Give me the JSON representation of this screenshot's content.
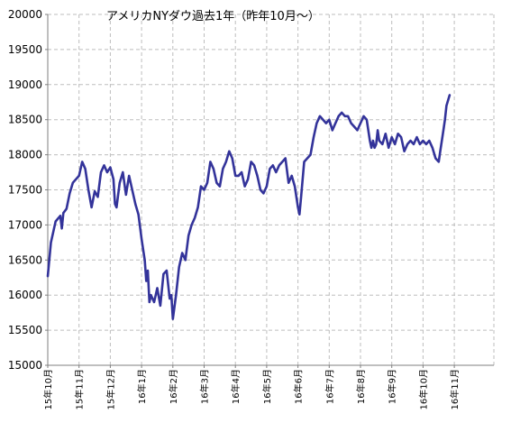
{
  "chart_data": {
    "type": "line",
    "title": "アメリカNYダウ過去1年（昨年10月～）",
    "xlabel": "",
    "ylabel": "",
    "ylim": [
      15000,
      20000
    ],
    "yticks": [
      15000,
      15500,
      16000,
      16500,
      17000,
      17500,
      18000,
      18500,
      19000,
      19500,
      20000
    ],
    "xticks": [
      "15年10月",
      "15年11月",
      "15年12月",
      "16年1月",
      "16年2月",
      "16年3月",
      "16年4月",
      "16年5月",
      "16年6月",
      "16年7月",
      "16年8月",
      "16年9月",
      "16年10月",
      "16年11月"
    ],
    "grid": true,
    "legend": "none",
    "line_color": "#33339a",
    "series": [
      {
        "values": [
          [
            0,
            16270
          ],
          [
            0.1,
            16750
          ],
          [
            0.25,
            17050
          ],
          [
            0.4,
            17130
          ],
          [
            0.45,
            16950
          ],
          [
            0.5,
            17170
          ],
          [
            0.6,
            17230
          ],
          [
            0.7,
            17450
          ],
          [
            0.8,
            17600
          ],
          [
            0.9,
            17650
          ],
          [
            1.0,
            17700
          ],
          [
            1.1,
            17900
          ],
          [
            1.2,
            17800
          ],
          [
            1.3,
            17500
          ],
          [
            1.4,
            17250
          ],
          [
            1.5,
            17480
          ],
          [
            1.6,
            17400
          ],
          [
            1.7,
            17750
          ],
          [
            1.8,
            17850
          ],
          [
            1.9,
            17750
          ],
          [
            2.0,
            17820
          ],
          [
            2.1,
            17650
          ],
          [
            2.15,
            17300
          ],
          [
            2.2,
            17250
          ],
          [
            2.3,
            17600
          ],
          [
            2.4,
            17750
          ],
          [
            2.5,
            17430
          ],
          [
            2.6,
            17700
          ],
          [
            2.7,
            17500
          ],
          [
            2.8,
            17300
          ],
          [
            2.9,
            17150
          ],
          [
            3.0,
            16800
          ],
          [
            3.1,
            16500
          ],
          [
            3.15,
            16200
          ],
          [
            3.2,
            16350
          ],
          [
            3.25,
            15900
          ],
          [
            3.3,
            16000
          ],
          [
            3.4,
            15900
          ],
          [
            3.5,
            16100
          ],
          [
            3.6,
            15850
          ],
          [
            3.7,
            16300
          ],
          [
            3.8,
            16350
          ],
          [
            3.9,
            15950
          ],
          [
            3.95,
            16000
          ],
          [
            4.0,
            15660
          ],
          [
            4.1,
            16000
          ],
          [
            4.2,
            16400
          ],
          [
            4.3,
            16600
          ],
          [
            4.4,
            16500
          ],
          [
            4.5,
            16850
          ],
          [
            4.6,
            17000
          ],
          [
            4.7,
            17100
          ],
          [
            4.8,
            17250
          ],
          [
            4.9,
            17550
          ],
          [
            5.0,
            17500
          ],
          [
            5.1,
            17600
          ],
          [
            5.2,
            17900
          ],
          [
            5.3,
            17800
          ],
          [
            5.4,
            17600
          ],
          [
            5.5,
            17550
          ],
          [
            5.6,
            17800
          ],
          [
            5.7,
            17900
          ],
          [
            5.8,
            18050
          ],
          [
            5.9,
            17950
          ],
          [
            6.0,
            17700
          ],
          [
            6.1,
            17700
          ],
          [
            6.2,
            17750
          ],
          [
            6.3,
            17550
          ],
          [
            6.4,
            17650
          ],
          [
            6.5,
            17900
          ],
          [
            6.6,
            17850
          ],
          [
            6.7,
            17700
          ],
          [
            6.8,
            17500
          ],
          [
            6.9,
            17450
          ],
          [
            7.0,
            17550
          ],
          [
            7.1,
            17800
          ],
          [
            7.2,
            17850
          ],
          [
            7.3,
            17750
          ],
          [
            7.4,
            17850
          ],
          [
            7.5,
            17900
          ],
          [
            7.6,
            17950
          ],
          [
            7.7,
            17600
          ],
          [
            7.8,
            17700
          ],
          [
            7.9,
            17550
          ],
          [
            8.0,
            17250
          ],
          [
            8.05,
            17150
          ],
          [
            8.1,
            17400
          ],
          [
            8.2,
            17900
          ],
          [
            8.3,
            17950
          ],
          [
            8.4,
            18000
          ],
          [
            8.5,
            18250
          ],
          [
            8.6,
            18450
          ],
          [
            8.7,
            18550
          ],
          [
            8.8,
            18500
          ],
          [
            8.9,
            18450
          ],
          [
            9.0,
            18500
          ],
          [
            9.1,
            18350
          ],
          [
            9.2,
            18450
          ],
          [
            9.3,
            18550
          ],
          [
            9.4,
            18600
          ],
          [
            9.5,
            18550
          ],
          [
            9.6,
            18550
          ],
          [
            9.7,
            18450
          ],
          [
            9.8,
            18400
          ],
          [
            9.9,
            18350
          ],
          [
            10.0,
            18450
          ],
          [
            10.1,
            18550
          ],
          [
            10.2,
            18500
          ],
          [
            10.3,
            18200
          ],
          [
            10.35,
            18100
          ],
          [
            10.4,
            18200
          ],
          [
            10.45,
            18100
          ],
          [
            10.5,
            18150
          ],
          [
            10.55,
            18350
          ],
          [
            10.6,
            18200
          ],
          [
            10.7,
            18150
          ],
          [
            10.8,
            18300
          ],
          [
            10.9,
            18100
          ],
          [
            11.0,
            18250
          ],
          [
            11.1,
            18150
          ],
          [
            11.2,
            18300
          ],
          [
            11.3,
            18250
          ],
          [
            11.4,
            18050
          ],
          [
            11.5,
            18150
          ],
          [
            11.6,
            18200
          ],
          [
            11.7,
            18150
          ],
          [
            11.8,
            18250
          ],
          [
            11.9,
            18150
          ],
          [
            12.0,
            18200
          ],
          [
            12.1,
            18150
          ],
          [
            12.2,
            18200
          ],
          [
            12.3,
            18100
          ],
          [
            12.4,
            17950
          ],
          [
            12.5,
            17900
          ],
          [
            12.55,
            18050
          ],
          [
            12.65,
            18350
          ],
          [
            12.7,
            18500
          ],
          [
            12.75,
            18700
          ],
          [
            12.85,
            18850
          ]
        ]
      }
    ]
  }
}
